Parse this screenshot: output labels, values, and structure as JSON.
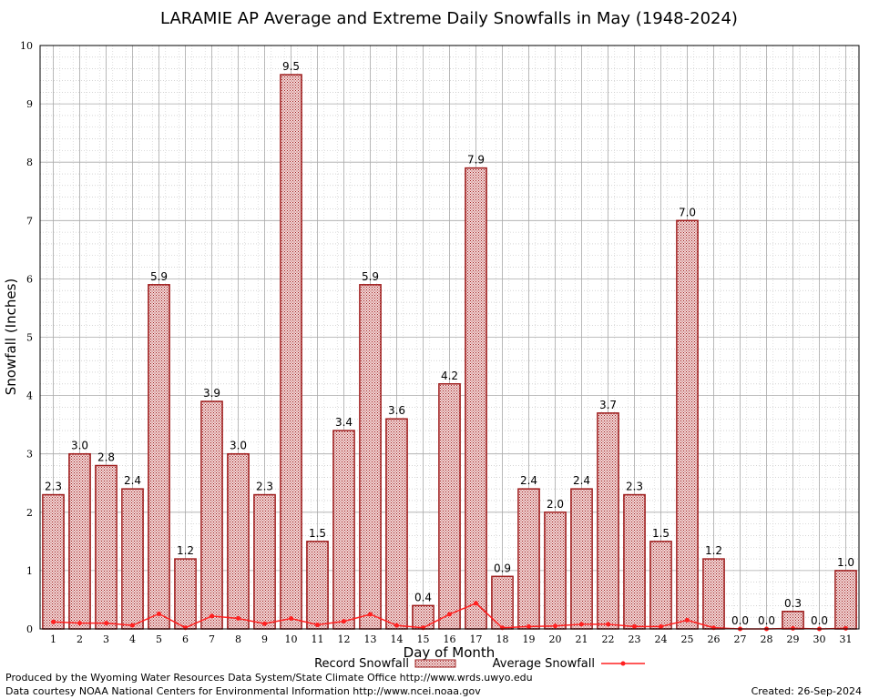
{
  "chart_data": {
    "type": "bar",
    "title": "LARAMIE AP Average and Extreme Daily Snowfalls in May (1948-2024)",
    "xlabel": "Day of Month",
    "ylabel": "Snowfall (Inches)",
    "ylim": [
      0,
      10
    ],
    "yticks": [
      0,
      1,
      2,
      3,
      4,
      5,
      6,
      7,
      8,
      9,
      10
    ],
    "grid": true,
    "legend_position": "bottom",
    "categories": [
      "1",
      "2",
      "3",
      "4",
      "5",
      "6",
      "7",
      "8",
      "9",
      "10",
      "11",
      "12",
      "13",
      "14",
      "15",
      "16",
      "17",
      "18",
      "19",
      "20",
      "21",
      "22",
      "23",
      "24",
      "25",
      "26",
      "27",
      "28",
      "29",
      "30",
      "31"
    ],
    "series": [
      {
        "name": "Record Snowfall",
        "kind": "bar",
        "color": "#b22222",
        "values": [
          2.3,
          3.0,
          2.8,
          2.4,
          5.9,
          1.2,
          3.9,
          3.0,
          2.3,
          9.5,
          1.5,
          3.4,
          5.9,
          3.6,
          0.4,
          4.2,
          7.9,
          0.9,
          2.4,
          2.0,
          2.4,
          3.7,
          2.3,
          1.5,
          7.0,
          1.2,
          0.0,
          0.0,
          0.3,
          0.0,
          1.0
        ],
        "labels": [
          "2.3",
          "3.0",
          "2.8",
          "2.4",
          "5.9",
          "1.2",
          "3.9",
          "3.0",
          "2.3",
          "9.5",
          "1.5",
          "3.4",
          "5.9",
          "3.6",
          "0.4",
          "4.2",
          "7.9",
          "0.9",
          "2.4",
          "2.0",
          "2.4",
          "3.7",
          "2.3",
          "1.5",
          "7.0",
          "1.2",
          "0.0",
          "0.0",
          "0.3",
          "0.0",
          "1.0"
        ]
      },
      {
        "name": "Average Snowfall",
        "kind": "line",
        "color": "#ff2020",
        "values": [
          0.12,
          0.1,
          0.1,
          0.06,
          0.26,
          0.02,
          0.22,
          0.18,
          0.09,
          0.18,
          0.07,
          0.13,
          0.25,
          0.06,
          0.02,
          0.25,
          0.44,
          0.02,
          0.04,
          0.05,
          0.08,
          0.08,
          0.04,
          0.04,
          0.15,
          0.02,
          0.0,
          0.0,
          0.01,
          0.0,
          0.01
        ]
      }
    ]
  },
  "footer": {
    "line1": "Produced by the Wyoming Water Resources Data System/State Climate Office http://www.wrds.uwyo.edu",
    "line2": "Data courtesy NOAA National Centers for Environmental Information http://www.ncei.noaa.gov",
    "created": "Created:  26-Sep-2024"
  }
}
